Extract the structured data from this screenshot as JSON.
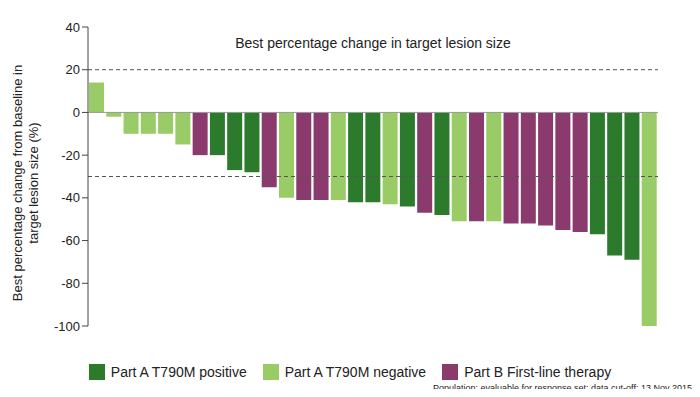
{
  "chart_data": {
    "type": "bar",
    "title": "Best percentage change in target lesion size",
    "y_label": "Best percentage change from baseline in target lesion size (%)",
    "footnote": "Population: evaluable for response set; data cut-off: 13 Nov 2015",
    "ylim": [
      -100,
      40
    ],
    "yticks": [
      -100,
      -80,
      -60,
      -40,
      -20,
      0,
      20,
      40
    ],
    "tick_labels": "y",
    "legend": "bottom",
    "reference_lines": [
      {
        "value": 0,
        "line_style": "solid"
      },
      {
        "value": 20,
        "line_style": "dashed"
      },
      {
        "value": -30,
        "line_style": "dashed"
      }
    ],
    "series": [
      {
        "name": "Part A T790M positive",
        "color": "#2c7a2c",
        "values": [
          null,
          null,
          null,
          null,
          null,
          null,
          null,
          -20,
          -27,
          -28,
          null,
          null,
          null,
          null,
          null,
          -42,
          -42,
          null,
          -44,
          null,
          -48,
          null,
          null,
          null,
          null,
          null,
          null,
          null,
          null,
          -57,
          -67,
          -69,
          null
        ]
      },
      {
        "name": "Part A T790M negative",
        "color": "#99cc66",
        "values": [
          14,
          -2,
          -10,
          -10,
          -10,
          -15,
          null,
          null,
          null,
          null,
          null,
          -40,
          null,
          null,
          -41,
          null,
          null,
          -43,
          null,
          null,
          null,
          -51,
          null,
          -51,
          null,
          null,
          null,
          null,
          null,
          null,
          null,
          null,
          -100
        ]
      },
      {
        "name": "Part B First-line therapy",
        "color": "#8b3a6e",
        "values": [
          null,
          null,
          null,
          null,
          null,
          null,
          -20,
          null,
          null,
          null,
          -35,
          null,
          -41,
          -41,
          null,
          null,
          null,
          null,
          null,
          -47,
          null,
          null,
          -51,
          null,
          -52,
          -52,
          -53,
          -55,
          -56,
          null,
          null,
          null,
          null
        ]
      }
    ]
  }
}
